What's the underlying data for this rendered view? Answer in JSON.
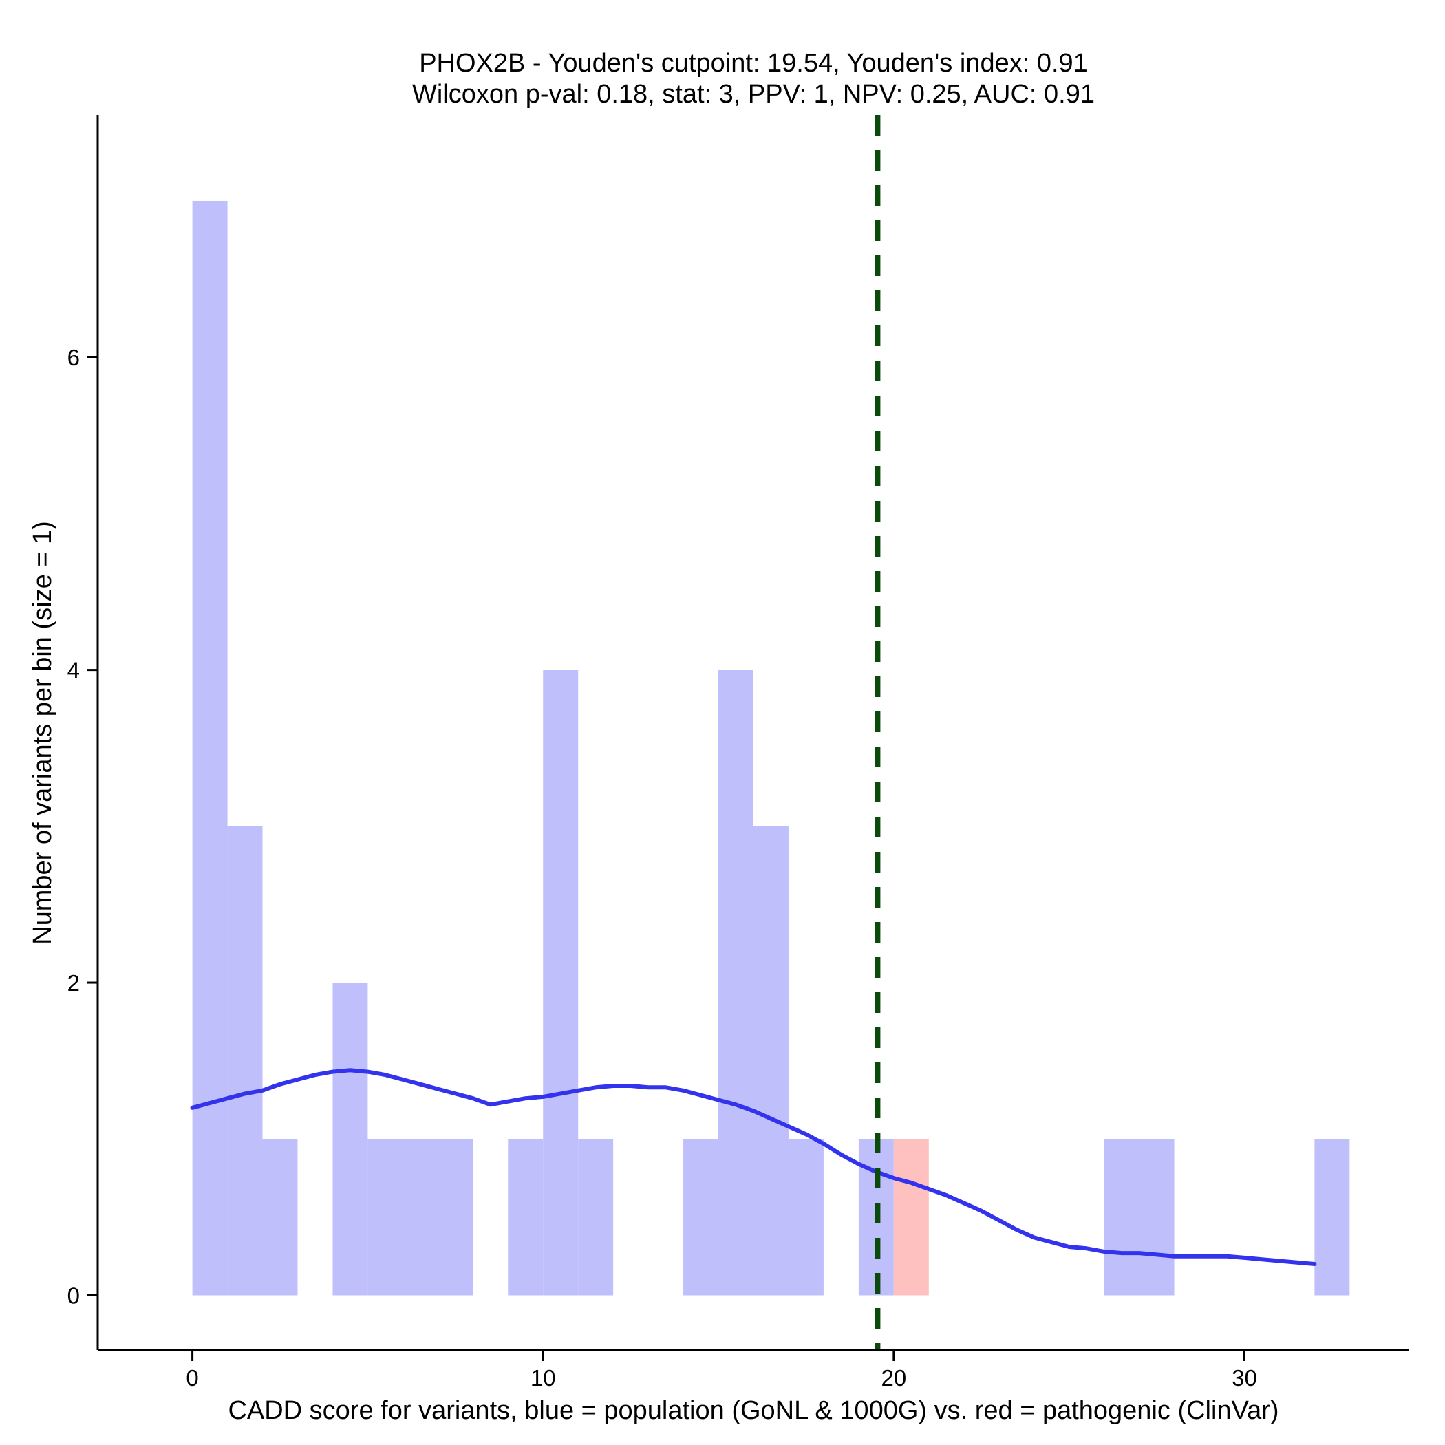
{
  "chart_data": {
    "type": "bar",
    "title": "PHOX2B - Youden's cutpoint: 19.54, Youden's index: 0.91",
    "subtitle": "Wilcoxon p-val: 0.18, stat: 3, PPV: 1, NPV: 0.25, AUC: 0.91",
    "xlabel": "CADD score for variants, blue = population (GoNL & 1000G) vs. red = pathogenic (ClinVar)",
    "ylabel": "Number of variants per bin (size = 1)",
    "xlim": [
      -2.7,
      34.7
    ],
    "ylim": [
      -0.35,
      7.55
    ],
    "xticks": [
      0,
      10,
      20,
      30
    ],
    "yticks": [
      0,
      2,
      4,
      6
    ],
    "bin_width": 1,
    "cutpoint": 19.54,
    "colors": {
      "population": "#bfbffb",
      "pathogenic": "#ffc0c0",
      "density": "#3333ee",
      "cutpoint": "#0a4a0a"
    },
    "series": [
      {
        "name": "population",
        "bins": [
          {
            "x0": 0,
            "x1": 1,
            "count": 7
          },
          {
            "x0": 1,
            "x1": 2,
            "count": 3
          },
          {
            "x0": 2,
            "x1": 3,
            "count": 1
          },
          {
            "x0": 4,
            "x1": 5,
            "count": 2
          },
          {
            "x0": 5,
            "x1": 6,
            "count": 1
          },
          {
            "x0": 6,
            "x1": 7,
            "count": 1
          },
          {
            "x0": 7,
            "x1": 8,
            "count": 1
          },
          {
            "x0": 9,
            "x1": 10,
            "count": 1
          },
          {
            "x0": 10,
            "x1": 11,
            "count": 4
          },
          {
            "x0": 11,
            "x1": 12,
            "count": 1
          },
          {
            "x0": 14,
            "x1": 15,
            "count": 1
          },
          {
            "x0": 15,
            "x1": 16,
            "count": 4
          },
          {
            "x0": 16,
            "x1": 17,
            "count": 3
          },
          {
            "x0": 17,
            "x1": 18,
            "count": 1
          },
          {
            "x0": 19,
            "x1": 20,
            "count": 1
          },
          {
            "x0": 26,
            "x1": 27,
            "count": 1
          },
          {
            "x0": 27,
            "x1": 28,
            "count": 1
          },
          {
            "x0": 32,
            "x1": 33,
            "count": 1
          }
        ]
      },
      {
        "name": "pathogenic",
        "bins": [
          {
            "x0": 20,
            "x1": 21,
            "count": 1
          }
        ]
      }
    ],
    "density_curve": {
      "x": [
        0,
        0.5,
        1,
        1.5,
        2,
        2.5,
        3,
        3.5,
        4,
        4.5,
        5,
        5.5,
        6,
        6.5,
        7,
        7.5,
        8,
        8.5,
        9,
        9.5,
        10,
        10.5,
        11,
        11.5,
        12,
        12.5,
        13,
        13.5,
        14,
        14.5,
        15,
        15.5,
        16,
        16.5,
        17,
        17.5,
        18,
        18.5,
        19,
        19.5,
        20,
        20.5,
        21,
        21.5,
        22,
        22.5,
        23,
        23.5,
        24,
        24.5,
        25,
        25.5,
        26,
        26.5,
        27,
        27.5,
        28,
        28.5,
        29,
        29.5,
        30,
        30.5,
        31,
        31.5,
        32
      ],
      "y": [
        1.2,
        1.23,
        1.26,
        1.29,
        1.31,
        1.35,
        1.38,
        1.41,
        1.43,
        1.44,
        1.43,
        1.41,
        1.38,
        1.35,
        1.32,
        1.29,
        1.26,
        1.22,
        1.24,
        1.26,
        1.27,
        1.29,
        1.31,
        1.33,
        1.34,
        1.34,
        1.33,
        1.33,
        1.31,
        1.28,
        1.25,
        1.22,
        1.18,
        1.13,
        1.08,
        1.03,
        0.97,
        0.9,
        0.84,
        0.79,
        0.75,
        0.72,
        0.68,
        0.64,
        0.59,
        0.54,
        0.48,
        0.42,
        0.37,
        0.34,
        0.31,
        0.3,
        0.28,
        0.27,
        0.27,
        0.26,
        0.25,
        0.25,
        0.25,
        0.25,
        0.24,
        0.23,
        0.22,
        0.21,
        0.2
      ]
    }
  }
}
